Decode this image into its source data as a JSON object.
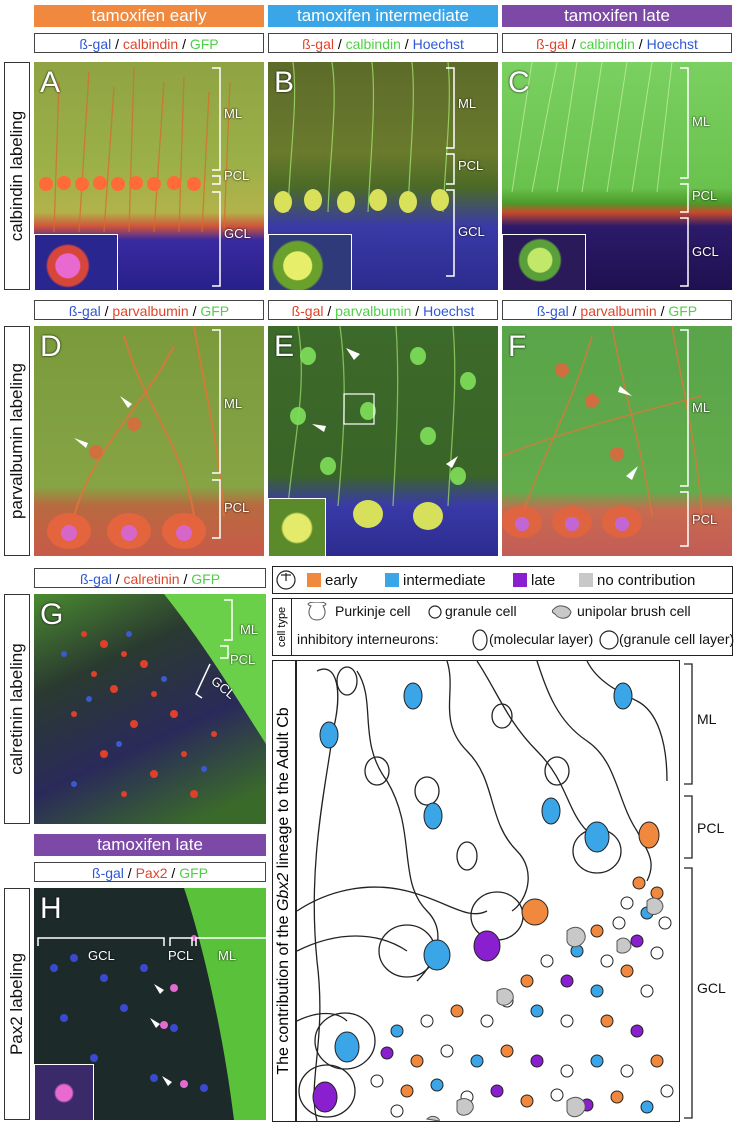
{
  "headers": {
    "early": "tamoxifen early",
    "intermediate": "tamoxifen intermediate",
    "late": "tamoxifen late",
    "late2": "tamoxifen late"
  },
  "colors": {
    "early": "#f0883e",
    "intermediate": "#3aa6e8",
    "late": "#7c4aa6",
    "purple_ink": "#8a1fd0",
    "gray": "#c8c8c8"
  },
  "stains": {
    "beta_gal": "ß-gal",
    "sep": " / ",
    "calbindin": "calbindin",
    "parvalbumin": "parvalbumin",
    "calretinin": "calretinin",
    "pax2": "Pax2",
    "gfp": "GFP",
    "hoechst": "Hoechst"
  },
  "side_labels": {
    "calbindin": "calbindin labeling",
    "parvalbumin": "parvalbumin labeling",
    "calretinin": "calretinin labeling",
    "pax2": "Pax2 labeling"
  },
  "panels": {
    "A": "A",
    "B": "B",
    "C": "C",
    "D": "D",
    "E": "E",
    "F": "F",
    "G": "G",
    "H": "H"
  },
  "layers": {
    "ml": "ML",
    "pcl": "PCL",
    "gcl": "GCL"
  },
  "legend": {
    "t_icon": "T",
    "early": "early",
    "intermediate": "intermediate",
    "late": "late",
    "none": "no contribution",
    "cell_type": "cell type",
    "purkinje": "Purkinje cell",
    "granule": "granule cell",
    "ubc": "unipolar brush cell",
    "inhib": "inhibitory interneurons:",
    "mol": "(molecular layer)",
    "gcl_layer": "(granule cell layer)"
  },
  "diagram": {
    "side_title_pre": "The contribution of the ",
    "side_title_gene": "Gbx2",
    "side_title_post": " lineage to the Adult Cb"
  }
}
